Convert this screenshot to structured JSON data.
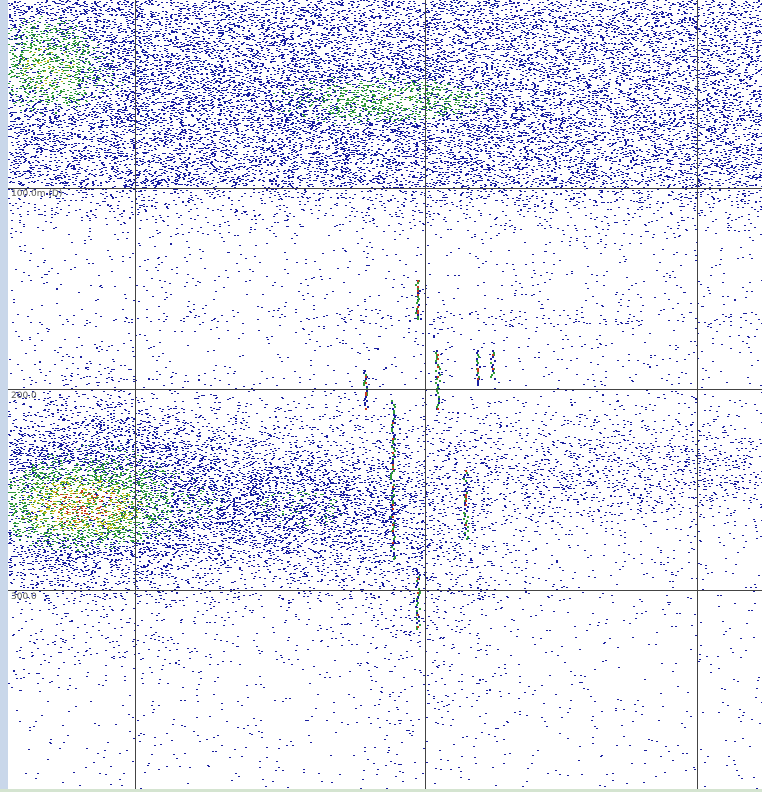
{
  "depth_labels": [
    "100.0m (D)",
    "200.0",
    "300.0"
  ]
}
